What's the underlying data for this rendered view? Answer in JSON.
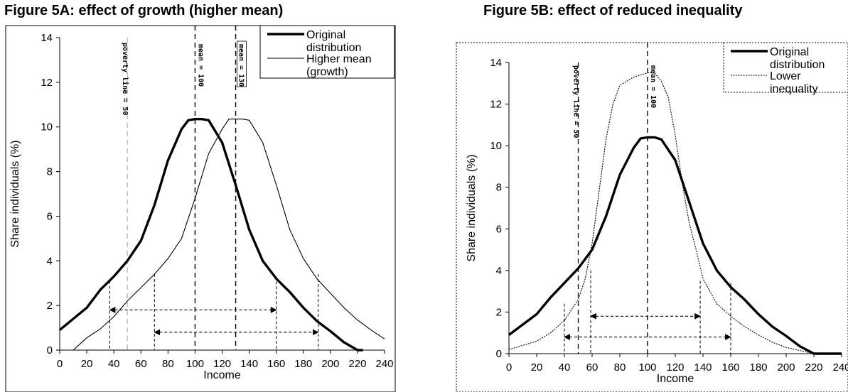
{
  "chart_data": [
    {
      "type": "line",
      "title": "Figure 5A: effect of growth (higher mean)",
      "xlabel": "Income",
      "ylabel": "Share individuals (%)",
      "xlim": [
        0,
        240
      ],
      "ylim": [
        0,
        14
      ],
      "x_ticks": [
        0,
        20,
        40,
        60,
        80,
        100,
        120,
        140,
        160,
        180,
        200,
        220,
        240
      ],
      "y_ticks": [
        0,
        2,
        4,
        6,
        8,
        10,
        12,
        14
      ],
      "legend": "top-right",
      "series": [
        {
          "name": "Original distribution",
          "x": [
            0,
            10,
            20,
            30,
            40,
            50,
            60,
            70,
            80,
            90,
            95,
            100,
            105,
            110,
            120,
            130,
            140,
            150,
            160,
            170,
            180,
            190,
            200,
            210,
            220,
            224
          ],
          "y": [
            0.9,
            1.4,
            1.9,
            2.7,
            3.3,
            4.0,
            4.9,
            6.5,
            8.5,
            9.9,
            10.3,
            10.35,
            10.35,
            10.3,
            9.3,
            7.4,
            5.4,
            4.0,
            3.2,
            2.6,
            1.9,
            1.3,
            0.85,
            0.35,
            0.0,
            0.0
          ]
        },
        {
          "name": "Higher mean (growth)",
          "x": [
            10,
            20,
            30,
            40,
            50,
            60,
            70,
            80,
            90,
            100,
            110,
            120,
            125,
            130,
            135,
            140,
            150,
            160,
            170,
            180,
            190,
            200,
            210,
            220,
            230,
            240
          ],
          "y": [
            0.0,
            0.55,
            0.95,
            1.5,
            2.2,
            2.8,
            3.4,
            4.1,
            5.0,
            6.8,
            8.8,
            9.9,
            10.35,
            10.35,
            10.35,
            10.3,
            9.3,
            7.4,
            5.4,
            4.1,
            3.2,
            2.55,
            1.9,
            1.35,
            0.9,
            0.5
          ]
        }
      ],
      "annotations": {
        "poverty_line": {
          "x": 50,
          "label": "poverty line = 50"
        },
        "means": [
          {
            "x": 100,
            "label": "mean = 100"
          },
          {
            "x": 130,
            "label": "mean = 130"
          }
        ],
        "ranges": [
          {
            "from": 37,
            "to": 160,
            "y": 1.8,
            "marker_heights": [
              3.1,
              3.3
            ]
          },
          {
            "from": 70,
            "to": 191,
            "y": 0.8,
            "marker_heights": [
              3.4,
              3.4
            ]
          }
        ]
      }
    },
    {
      "type": "line",
      "title": "Figure 5B: effect of reduced inequality",
      "xlabel": "Income",
      "ylabel": "Share individuals (%)",
      "xlim": [
        0,
        240
      ],
      "ylim": [
        0,
        14
      ],
      "x_ticks": [
        0,
        20,
        40,
        60,
        80,
        100,
        120,
        140,
        160,
        180,
        200,
        220,
        240
      ],
      "y_ticks": [
        0,
        2,
        4,
        6,
        8,
        10,
        12,
        14
      ],
      "legend": "top-right",
      "series": [
        {
          "name": "Original distribution",
          "x": [
            0,
            10,
            20,
            30,
            40,
            50,
            60,
            70,
            80,
            90,
            95,
            100,
            105,
            110,
            120,
            130,
            140,
            150,
            160,
            170,
            180,
            190,
            200,
            210,
            220,
            224,
            240
          ],
          "y": [
            0.9,
            1.4,
            1.9,
            2.7,
            3.4,
            4.1,
            5.0,
            6.6,
            8.6,
            9.9,
            10.35,
            10.4,
            10.4,
            10.3,
            9.3,
            7.3,
            5.3,
            4.0,
            3.2,
            2.6,
            1.9,
            1.3,
            0.85,
            0.35,
            0.0,
            0.0,
            0.0
          ]
        },
        {
          "name": "Lower inequality",
          "x": [
            0,
            10,
            20,
            30,
            40,
            50,
            55,
            60,
            65,
            70,
            75,
            80,
            90,
            100,
            105,
            110,
            115,
            120,
            125,
            130,
            135,
            140,
            150,
            160,
            170,
            180,
            190,
            200,
            210,
            220
          ],
          "y": [
            0.2,
            0.4,
            0.6,
            1.0,
            1.6,
            2.6,
            3.6,
            5.3,
            7.8,
            10.3,
            12.0,
            12.9,
            13.3,
            13.5,
            13.5,
            13.1,
            12.3,
            10.5,
            8.2,
            6.3,
            5.0,
            3.6,
            2.4,
            1.8,
            1.3,
            0.9,
            0.55,
            0.3,
            0.15,
            0.0
          ]
        }
      ],
      "annotations": {
        "poverty_line": {
          "x": 50,
          "label": "poverty line = 50"
        },
        "means": [
          {
            "x": 100,
            "label": "mean = 100"
          }
        ],
        "ranges": [
          {
            "from": 59,
            "to": 138,
            "y": 1.8,
            "marker_heights": [
              4.0,
              3.5
            ]
          },
          {
            "from": 40,
            "to": 160,
            "y": 0.8,
            "marker_heights": [
              2.4,
              3.4
            ]
          }
        ]
      }
    }
  ]
}
